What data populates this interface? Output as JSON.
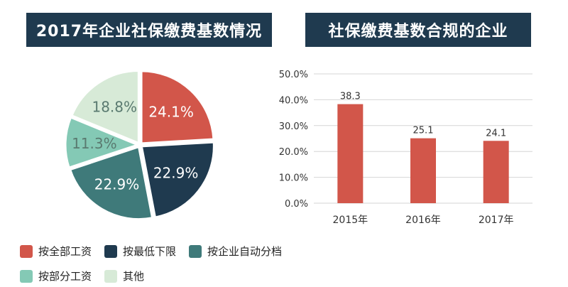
{
  "chart_data": [
    {
      "type": "pie",
      "title": "2017年企业社保缴费基数情况",
      "slices": [
        {
          "label": "按全部工资",
          "value": 24.1,
          "display": "24.1%",
          "color": "#d2564a"
        },
        {
          "label": "按最低下限",
          "value": 22.9,
          "display": "22.9%",
          "color": "#1f3a4f"
        },
        {
          "label": "按企业自动分档",
          "value": 22.9,
          "display": "22.9%",
          "color": "#3f7a7a"
        },
        {
          "label": "按部分工资",
          "value": 11.3,
          "display": "11.3%",
          "color": "#84c9b5"
        },
        {
          "label": "其他",
          "value": 18.8,
          "display": "18.8%",
          "color": "#d7ead7"
        }
      ],
      "legend_position": "bottom"
    },
    {
      "type": "bar",
      "title": "社保缴费基数合规的企业",
      "categories": [
        "2015年",
        "2016年",
        "2017年"
      ],
      "values": [
        38.3,
        25.1,
        24.1
      ],
      "value_labels": [
        "38.3",
        "25.1",
        "24.1"
      ],
      "ylim": [
        0,
        50
      ],
      "yticks": [
        0,
        10,
        20,
        30,
        40,
        50
      ],
      "ytick_labels": [
        "0.0%",
        "10.0%",
        "20.0%",
        "30.0%",
        "40.0%",
        "50.0%"
      ],
      "grid": true,
      "bar_color": "#d2564a",
      "xlabel": "",
      "ylabel": ""
    }
  ]
}
